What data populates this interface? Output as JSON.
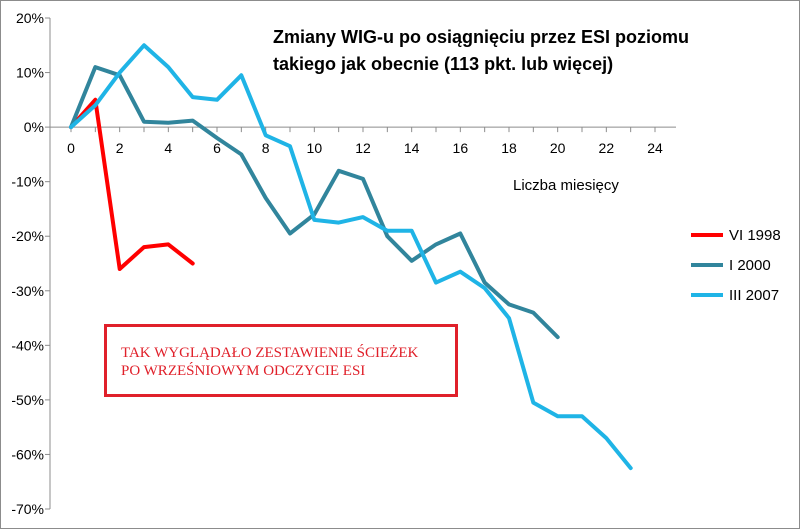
{
  "chart_data": {
    "type": "line",
    "title": "Zmiany WIG-u po osiągnięciu przez ESI poziomu\ntakiego jak obecnie (113 pkt. lub więcej)",
    "xlabel": "Liczba miesięcy",
    "ylabel": "",
    "xlim": [
      0,
      24
    ],
    "ylim": [
      -70,
      20
    ],
    "x_ticks": [
      0,
      2,
      4,
      6,
      8,
      10,
      12,
      14,
      16,
      18,
      20,
      22,
      24
    ],
    "y_ticks": [
      20,
      10,
      0,
      -10,
      -20,
      -30,
      -40,
      -50,
      -60,
      -70
    ],
    "y_tick_labels": [
      "20%",
      "10%",
      "0%",
      "-10%",
      "-20%",
      "-30%",
      "-40%",
      "-50%",
      "-60%",
      "-70%"
    ],
    "grid": false,
    "legend_position": "right",
    "series": [
      {
        "name": "VI 1998",
        "color": "#ff0000",
        "x": [
          0,
          1,
          2,
          3,
          4,
          5
        ],
        "values": [
          0,
          5,
          -26,
          -22,
          -21.5,
          -25
        ]
      },
      {
        "name": "I 2000",
        "color": "#31859c",
        "x": [
          0,
          1,
          2,
          3,
          4,
          5,
          6,
          7,
          8,
          9,
          10,
          11,
          12,
          13,
          14,
          15,
          16,
          17,
          18,
          19,
          20
        ],
        "values": [
          0,
          11,
          9.5,
          1,
          0.8,
          1.2,
          -2,
          -5,
          -13,
          -19.5,
          -16,
          -8,
          -9.5,
          -20,
          -24.5,
          -21.5,
          -19.5,
          -28.5,
          -32.5,
          -34,
          -38.5
        ]
      },
      {
        "name": "III 2007",
        "color": "#1fb4e6",
        "x": [
          0,
          1,
          2,
          3,
          4,
          5,
          6,
          7,
          8,
          9,
          10,
          11,
          12,
          13,
          14,
          15,
          16,
          17,
          18,
          19,
          20,
          21,
          22,
          23
        ],
        "values": [
          0,
          4,
          10,
          15,
          11,
          5.5,
          5,
          9.5,
          -1.5,
          -3.5,
          -17,
          -17.5,
          -16.5,
          -19,
          -19,
          -28.5,
          -26.5,
          -29.5,
          -35,
          -50.5,
          -53,
          -53,
          -57,
          -62.5
        ]
      }
    ],
    "annotation": "TAK WYGLĄDAŁO ZESTAWIENIE ŚCIEŻEK\nPO WRZEŚNIOWYM ODCZYCIE ESI"
  }
}
